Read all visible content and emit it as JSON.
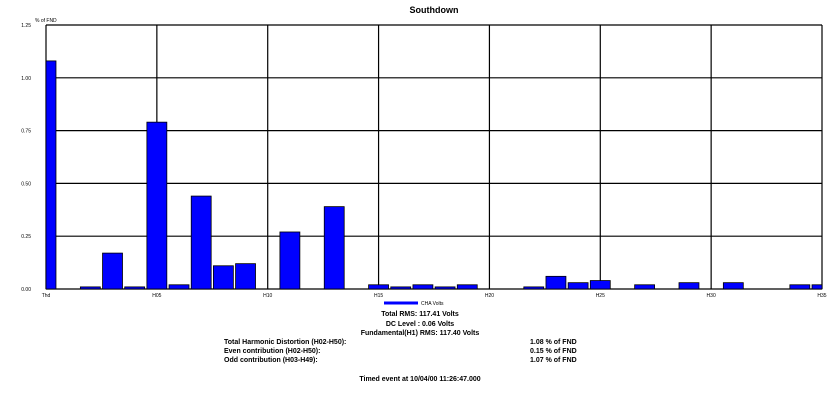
{
  "chart_data": {
    "type": "bar",
    "title": "Southdown",
    "ylabel": "% of FND",
    "ylim": [
      0,
      1.25
    ],
    "yticks": [
      "0.00",
      "0.25",
      "0.50",
      "0.75",
      "1.00",
      "1.25"
    ],
    "xtick_labels": [
      {
        "index": 0,
        "label": "Thd"
      },
      {
        "index": 5,
        "label": "H05"
      },
      {
        "index": 10,
        "label": "H10"
      },
      {
        "index": 15,
        "label": "H15"
      },
      {
        "index": 20,
        "label": "H20"
      },
      {
        "index": 25,
        "label": "H25"
      },
      {
        "index": 30,
        "label": "H30"
      },
      {
        "index": 35,
        "label": "H35"
      }
    ],
    "categories": [
      "Thd",
      "H01",
      "H02",
      "H03",
      "H04",
      "H05",
      "H06",
      "H07",
      "H08",
      "H09",
      "H10",
      "H11",
      "H12",
      "H13",
      "H14",
      "H15",
      "H16",
      "H17",
      "H18",
      "H19",
      "H20",
      "H21",
      "H22",
      "H23",
      "H24",
      "H25",
      "H26",
      "H27",
      "H28",
      "H29",
      "H30",
      "H31",
      "H32",
      "H33",
      "H34",
      "H35"
    ],
    "series": [
      {
        "name": "CHA Volts",
        "color": "#0000ff",
        "values": [
          1.08,
          0,
          0.01,
          0.17,
          0.01,
          0.79,
          0.02,
          0.44,
          0.11,
          0.12,
          0,
          0.27,
          0,
          0.39,
          0,
          0.02,
          0.01,
          0.02,
          0.01,
          0.02,
          0,
          0,
          0.01,
          0.06,
          0.03,
          0.04,
          0,
          0.02,
          0,
          0.03,
          0,
          0.03,
          0,
          0,
          0.02,
          0.02
        ]
      }
    ],
    "grid": true,
    "legend": "bottom-center"
  },
  "stats": {
    "total_rms": "Total RMS: 117.41 Volts",
    "dc_level": "DC Level : 0.06 Volts",
    "fundamental_rms": "Fundamental(H1) RMS: 117.40 Volts",
    "thd_label": "Total Harmonic Distortion (H02-H50):",
    "thd_value": "1.08 % of FND",
    "even_label": "Even contribution (H02-H50):",
    "even_value": "0.15 % of FND",
    "odd_label": "Odd  contribution (H03-H49):",
    "odd_value": "1.07 % of FND",
    "timed_event": "Timed event at 10/04/00 11:26:47.000"
  }
}
